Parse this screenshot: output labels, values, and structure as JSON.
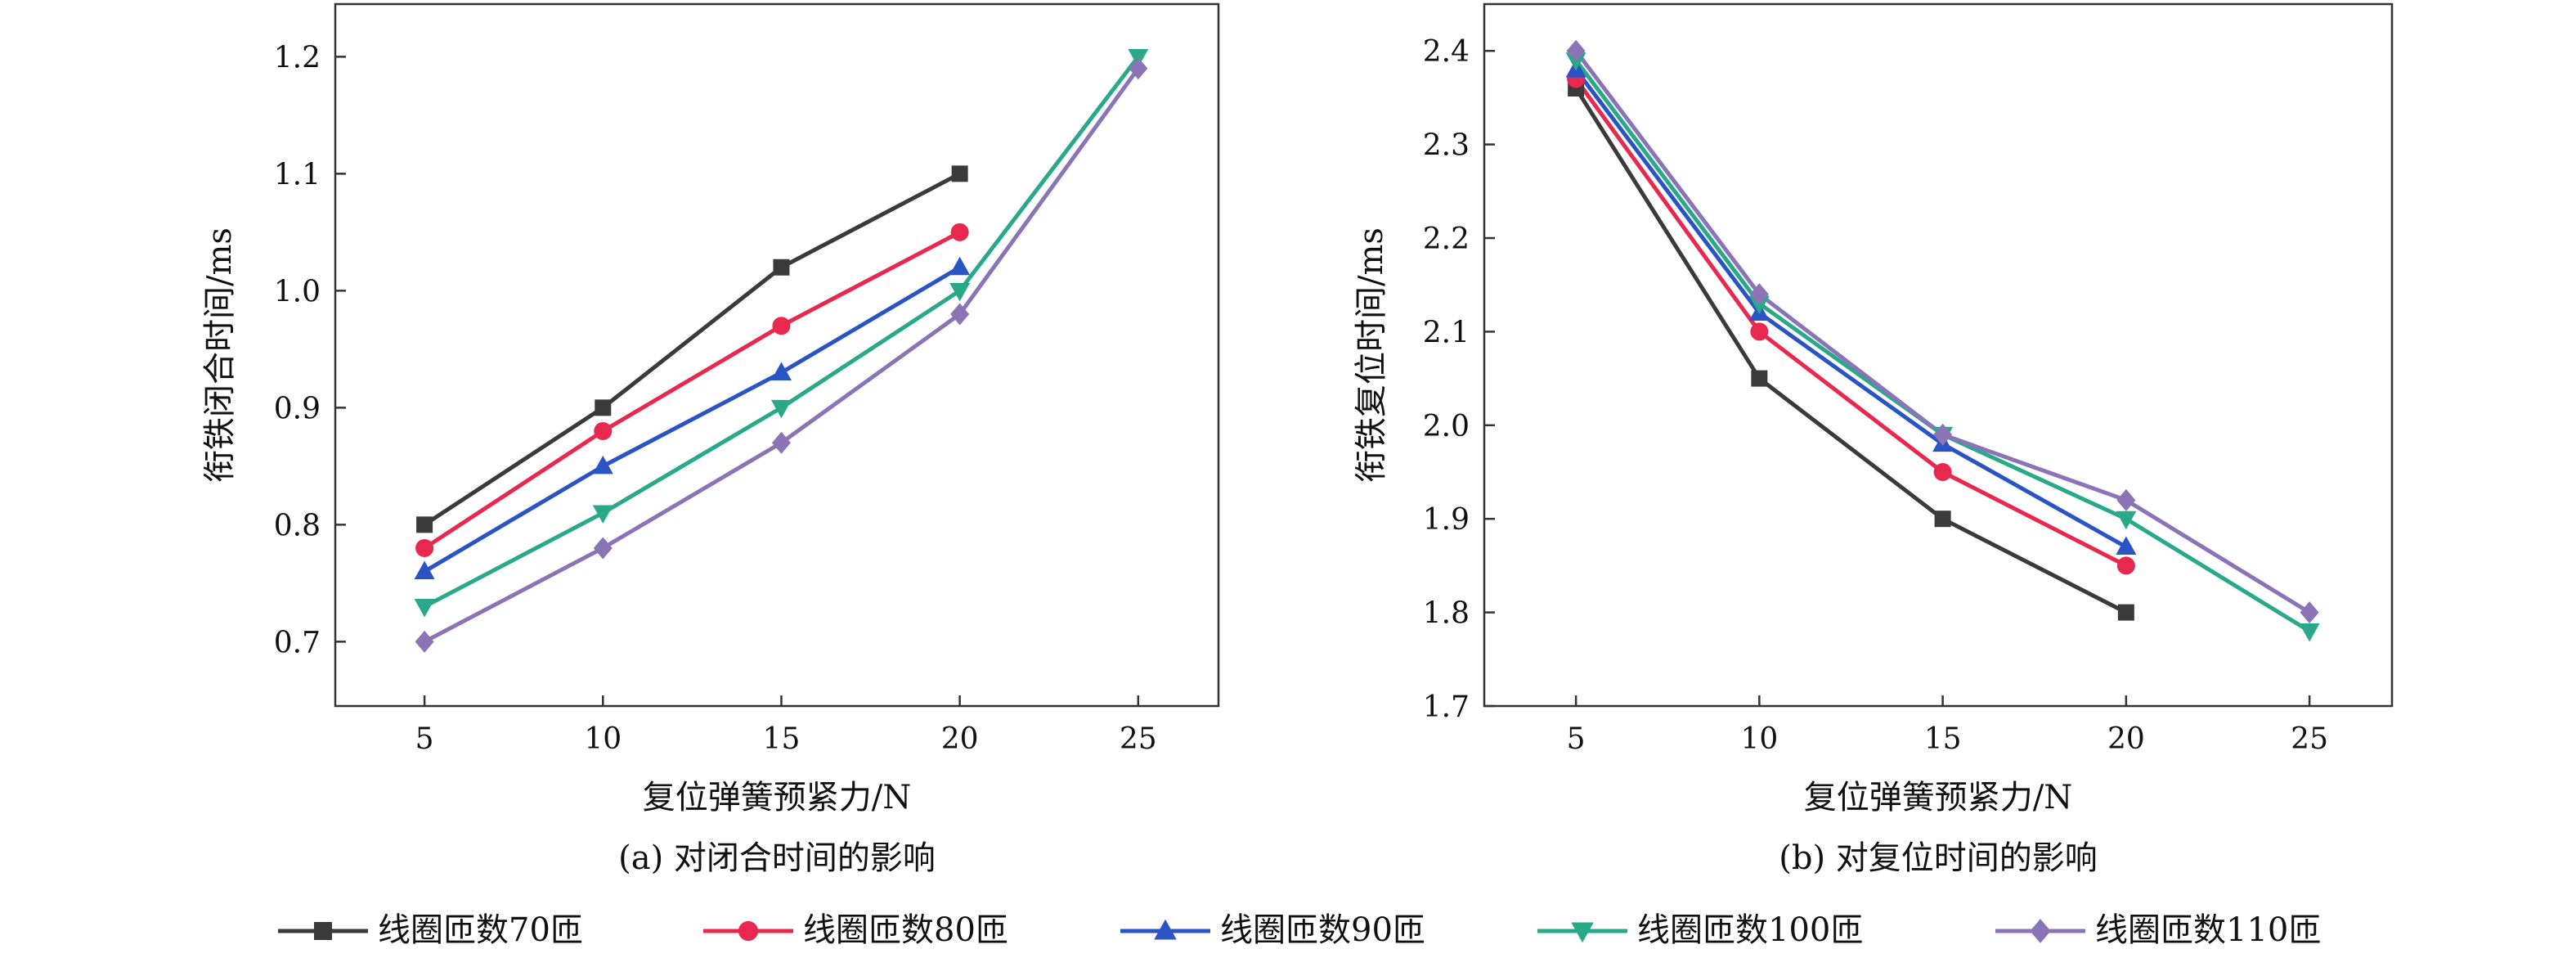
{
  "chart_data": [
    {
      "type": "line",
      "caption": "(a) 对闭合时间的影响",
      "xlabel": "复位弹簧预紧力/N",
      "ylabel": "衔铁闭合时间/ms",
      "x": [
        5,
        10,
        15,
        20,
        25
      ],
      "x_ticks": [
        "5",
        "10",
        "15",
        "20",
        "25"
      ],
      "y_ticks": [
        "0.7",
        "0.8",
        "0.9",
        "1.0",
        "1.1",
        "1.2"
      ],
      "xlim": [
        2.5,
        27.25
      ],
      "ylim": [
        0.645,
        1.245
      ],
      "grid": false,
      "series": [
        {
          "name": "线圈匝数70匝",
          "color": "#3a3a3a",
          "marker": "square",
          "x": [
            5,
            10,
            15,
            20
          ],
          "values": [
            0.8,
            0.9,
            1.02,
            1.1
          ]
        },
        {
          "name": "线圈匝数80匝",
          "color": "#e8284f",
          "marker": "circle",
          "x": [
            5,
            10,
            15,
            20
          ],
          "values": [
            0.78,
            0.88,
            0.97,
            1.05
          ]
        },
        {
          "name": "线圈匝数90匝",
          "color": "#2a54c4",
          "marker": "triangle-up",
          "x": [
            5,
            10,
            15,
            20
          ],
          "values": [
            0.76,
            0.85,
            0.93,
            1.02
          ]
        },
        {
          "name": "线圈匝数100匝",
          "color": "#29a98a",
          "marker": "triangle-down",
          "x": [
            5,
            10,
            15,
            20,
            25
          ],
          "values": [
            0.73,
            0.81,
            0.9,
            1.0,
            1.2
          ]
        },
        {
          "name": "线圈匝数110匝",
          "color": "#8b74b5",
          "marker": "diamond",
          "x": [
            5,
            10,
            15,
            20,
            25
          ],
          "values": [
            0.7,
            0.78,
            0.87,
            0.98,
            1.19
          ]
        }
      ]
    },
    {
      "type": "line",
      "caption": "(b) 对复位时间的影响",
      "xlabel": "复位弹簧预紧力/N",
      "ylabel": "衔铁复位时间/ms",
      "x": [
        5,
        10,
        15,
        20,
        25
      ],
      "x_ticks": [
        "5",
        "10",
        "15",
        "20",
        "25"
      ],
      "y_ticks": [
        "1.7",
        "1.8",
        "1.9",
        "2.0",
        "2.1",
        "2.2",
        "2.3",
        "2.4"
      ],
      "xlim": [
        2.5,
        27.25
      ],
      "ylim": [
        1.7,
        2.45
      ],
      "grid": false,
      "series": [
        {
          "name": "线圈匝数70匝",
          "color": "#3a3a3a",
          "marker": "square",
          "x": [
            5,
            10,
            15,
            20
          ],
          "values": [
            2.36,
            2.05,
            1.9,
            1.8
          ]
        },
        {
          "name": "线圈匝数80匝",
          "color": "#e8284f",
          "marker": "circle",
          "x": [
            5,
            10,
            15,
            20
          ],
          "values": [
            2.37,
            2.1,
            1.95,
            1.85
          ]
        },
        {
          "name": "线圈匝数90匝",
          "color": "#2a54c4",
          "marker": "triangle-up",
          "x": [
            5,
            10,
            15,
            20
          ],
          "values": [
            2.38,
            2.12,
            1.98,
            1.87
          ]
        },
        {
          "name": "线圈匝数100匝",
          "color": "#29a98a",
          "marker": "triangle-down",
          "x": [
            5,
            10,
            15,
            20,
            25
          ],
          "values": [
            2.39,
            2.13,
            1.99,
            1.9,
            1.78
          ]
        },
        {
          "name": "线圈匝数110匝",
          "color": "#8b74b5",
          "marker": "diamond",
          "x": [
            5,
            10,
            15,
            20,
            25
          ],
          "values": [
            2.4,
            2.14,
            1.99,
            1.92,
            1.8
          ]
        }
      ]
    }
  ],
  "legend": {
    "position": "bottom",
    "items": [
      {
        "label": "线圈匝数70匝",
        "color": "#3a3a3a",
        "marker": "square"
      },
      {
        "label": "线圈匝数80匝",
        "color": "#e8284f",
        "marker": "circle"
      },
      {
        "label": "线圈匝数90匝",
        "color": "#2a54c4",
        "marker": "triangle-up"
      },
      {
        "label": "线圈匝数100匝",
        "color": "#29a98a",
        "marker": "triangle-down"
      },
      {
        "label": "线圈匝数110匝",
        "color": "#8b74b5",
        "marker": "diamond"
      }
    ]
  }
}
